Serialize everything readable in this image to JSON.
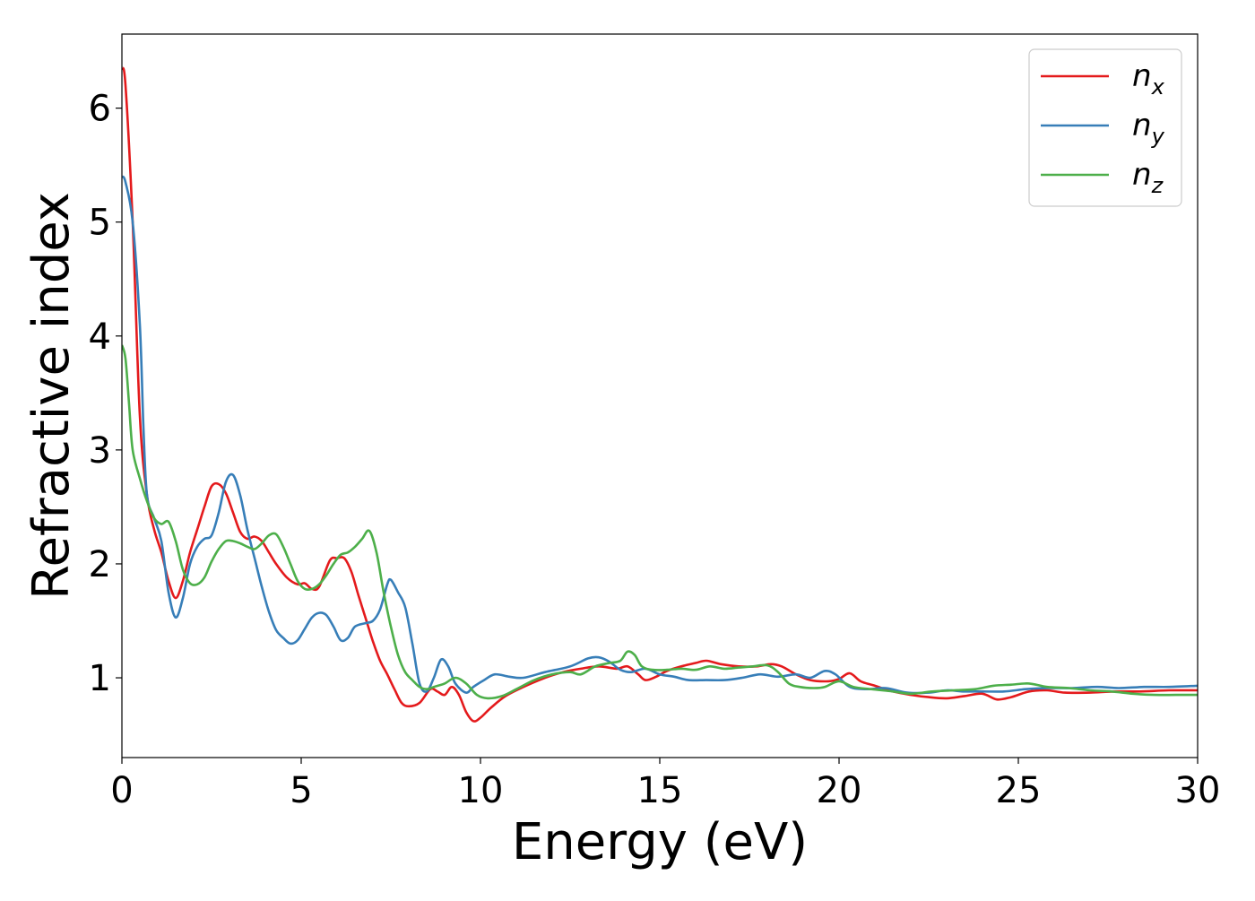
{
  "chart_data": {
    "type": "line",
    "title": "",
    "xlabel": "Energy (eV)",
    "ylabel": "Refractive index",
    "xlim": [
      0,
      30
    ],
    "ylim": [
      0.3,
      6.65
    ],
    "xticks": [
      0,
      5,
      10,
      15,
      20,
      25,
      30
    ],
    "xtick_labels": [
      "0",
      "5",
      "10",
      "15",
      "20",
      "25",
      "30"
    ],
    "yticks": [
      1,
      2,
      3,
      4,
      5,
      6
    ],
    "ytick_labels": [
      "1",
      "2",
      "3",
      "4",
      "5",
      "6"
    ],
    "grid": false,
    "legend_position": "top-right",
    "series": [
      {
        "name": "n",
        "subscript": "x",
        "color": "#e41a1c",
        "points": [
          [
            0,
            6.35
          ],
          [
            0.1,
            6.2
          ],
          [
            0.3,
            5.0
          ],
          [
            0.5,
            3.3
          ],
          [
            0.7,
            2.6
          ],
          [
            0.9,
            2.3
          ],
          [
            1.1,
            2.1
          ],
          [
            1.3,
            1.85
          ],
          [
            1.5,
            1.7
          ],
          [
            1.7,
            1.85
          ],
          [
            1.9,
            2.1
          ],
          [
            2.1,
            2.3
          ],
          [
            2.3,
            2.5
          ],
          [
            2.5,
            2.68
          ],
          [
            2.7,
            2.7
          ],
          [
            2.9,
            2.62
          ],
          [
            3.1,
            2.45
          ],
          [
            3.3,
            2.28
          ],
          [
            3.5,
            2.22
          ],
          [
            3.7,
            2.24
          ],
          [
            3.9,
            2.2
          ],
          [
            4.1,
            2.1
          ],
          [
            4.3,
            2.0
          ],
          [
            4.6,
            1.88
          ],
          [
            4.9,
            1.82
          ],
          [
            5.1,
            1.83
          ],
          [
            5.3,
            1.78
          ],
          [
            5.5,
            1.8
          ],
          [
            5.8,
            2.03
          ],
          [
            6.0,
            2.05
          ],
          [
            6.2,
            2.05
          ],
          [
            6.4,
            1.93
          ],
          [
            6.6,
            1.72
          ],
          [
            6.8,
            1.52
          ],
          [
            7.0,
            1.32
          ],
          [
            7.2,
            1.15
          ],
          [
            7.4,
            1.03
          ],
          [
            7.6,
            0.9
          ],
          [
            7.8,
            0.78
          ],
          [
            8.0,
            0.75
          ],
          [
            8.3,
            0.78
          ],
          [
            8.6,
            0.9
          ],
          [
            8.8,
            0.88
          ],
          [
            9.0,
            0.85
          ],
          [
            9.2,
            0.92
          ],
          [
            9.4,
            0.85
          ],
          [
            9.6,
            0.7
          ],
          [
            9.8,
            0.62
          ],
          [
            10.0,
            0.65
          ],
          [
            10.3,
            0.74
          ],
          [
            10.7,
            0.84
          ],
          [
            11.2,
            0.92
          ],
          [
            11.8,
            1.0
          ],
          [
            12.3,
            1.05
          ],
          [
            12.8,
            1.08
          ],
          [
            13.3,
            1.1
          ],
          [
            13.8,
            1.08
          ],
          [
            14.1,
            1.1
          ],
          [
            14.4,
            1.03
          ],
          [
            14.6,
            0.98
          ],
          [
            14.9,
            1.01
          ],
          [
            15.2,
            1.06
          ],
          [
            15.6,
            1.1
          ],
          [
            16.0,
            1.13
          ],
          [
            16.3,
            1.15
          ],
          [
            16.7,
            1.12
          ],
          [
            17.2,
            1.1
          ],
          [
            17.7,
            1.1
          ],
          [
            18.1,
            1.12
          ],
          [
            18.4,
            1.1
          ],
          [
            18.8,
            1.03
          ],
          [
            19.2,
            0.98
          ],
          [
            19.7,
            0.97
          ],
          [
            20.0,
            0.99
          ],
          [
            20.3,
            1.04
          ],
          [
            20.6,
            0.97
          ],
          [
            21.0,
            0.93
          ],
          [
            21.5,
            0.88
          ],
          [
            22.0,
            0.85
          ],
          [
            22.5,
            0.83
          ],
          [
            23.0,
            0.82
          ],
          [
            23.5,
            0.84
          ],
          [
            24.0,
            0.86
          ],
          [
            24.4,
            0.81
          ],
          [
            24.8,
            0.83
          ],
          [
            25.3,
            0.88
          ],
          [
            25.8,
            0.89
          ],
          [
            26.3,
            0.87
          ],
          [
            27.0,
            0.87
          ],
          [
            27.7,
            0.88
          ],
          [
            28.4,
            0.88
          ],
          [
            29.2,
            0.89
          ],
          [
            30,
            0.89
          ]
        ]
      },
      {
        "name": "n",
        "subscript": "y",
        "color": "#377eb8",
        "points": [
          [
            0,
            5.4
          ],
          [
            0.1,
            5.35
          ],
          [
            0.3,
            5.0
          ],
          [
            0.5,
            4.1
          ],
          [
            0.6,
            3.2
          ],
          [
            0.7,
            2.6
          ],
          [
            0.9,
            2.4
          ],
          [
            1.1,
            2.2
          ],
          [
            1.3,
            1.75
          ],
          [
            1.5,
            1.53
          ],
          [
            1.7,
            1.7
          ],
          [
            1.9,
            2.0
          ],
          [
            2.1,
            2.15
          ],
          [
            2.3,
            2.22
          ],
          [
            2.5,
            2.25
          ],
          [
            2.7,
            2.45
          ],
          [
            2.9,
            2.72
          ],
          [
            3.1,
            2.78
          ],
          [
            3.3,
            2.6
          ],
          [
            3.5,
            2.3
          ],
          [
            3.7,
            2.05
          ],
          [
            3.9,
            1.8
          ],
          [
            4.1,
            1.58
          ],
          [
            4.3,
            1.42
          ],
          [
            4.5,
            1.35
          ],
          [
            4.7,
            1.3
          ],
          [
            4.9,
            1.33
          ],
          [
            5.1,
            1.43
          ],
          [
            5.3,
            1.53
          ],
          [
            5.5,
            1.57
          ],
          [
            5.7,
            1.55
          ],
          [
            5.9,
            1.45
          ],
          [
            6.1,
            1.33
          ],
          [
            6.3,
            1.35
          ],
          [
            6.5,
            1.45
          ],
          [
            6.8,
            1.48
          ],
          [
            7.0,
            1.5
          ],
          [
            7.2,
            1.6
          ],
          [
            7.4,
            1.82
          ],
          [
            7.5,
            1.86
          ],
          [
            7.7,
            1.75
          ],
          [
            7.9,
            1.62
          ],
          [
            8.1,
            1.3
          ],
          [
            8.3,
            0.95
          ],
          [
            8.5,
            0.88
          ],
          [
            8.7,
            1.0
          ],
          [
            8.9,
            1.16
          ],
          [
            9.1,
            1.1
          ],
          [
            9.3,
            0.95
          ],
          [
            9.6,
            0.87
          ],
          [
            9.8,
            0.92
          ],
          [
            10.1,
            0.98
          ],
          [
            10.4,
            1.03
          ],
          [
            10.8,
            1.01
          ],
          [
            11.2,
            1.0
          ],
          [
            11.8,
            1.05
          ],
          [
            12.5,
            1.1
          ],
          [
            13.0,
            1.17
          ],
          [
            13.3,
            1.18
          ],
          [
            13.6,
            1.14
          ],
          [
            13.9,
            1.07
          ],
          [
            14.2,
            1.05
          ],
          [
            14.6,
            1.08
          ],
          [
            15.0,
            1.03
          ],
          [
            15.4,
            1.01
          ],
          [
            15.8,
            0.98
          ],
          [
            16.3,
            0.98
          ],
          [
            16.8,
            0.98
          ],
          [
            17.3,
            1.0
          ],
          [
            17.8,
            1.03
          ],
          [
            18.3,
            1.01
          ],
          [
            18.8,
            1.03
          ],
          [
            19.2,
            1.0
          ],
          [
            19.6,
            1.06
          ],
          [
            19.9,
            1.03
          ],
          [
            20.3,
            0.92
          ],
          [
            20.8,
            0.9
          ],
          [
            21.3,
            0.91
          ],
          [
            21.9,
            0.87
          ],
          [
            22.5,
            0.87
          ],
          [
            23.0,
            0.89
          ],
          [
            23.5,
            0.88
          ],
          [
            24.0,
            0.88
          ],
          [
            24.6,
            0.88
          ],
          [
            25.2,
            0.9
          ],
          [
            25.8,
            0.91
          ],
          [
            26.5,
            0.91
          ],
          [
            27.2,
            0.92
          ],
          [
            27.8,
            0.91
          ],
          [
            28.5,
            0.92
          ],
          [
            29.2,
            0.92
          ],
          [
            30,
            0.93
          ]
        ]
      },
      {
        "name": "n",
        "subscript": "z",
        "color": "#4daf4a",
        "points": [
          [
            0,
            3.92
          ],
          [
            0.1,
            3.8
          ],
          [
            0.2,
            3.4
          ],
          [
            0.3,
            3.0
          ],
          [
            0.5,
            2.75
          ],
          [
            0.7,
            2.55
          ],
          [
            0.9,
            2.4
          ],
          [
            1.1,
            2.35
          ],
          [
            1.3,
            2.37
          ],
          [
            1.5,
            2.2
          ],
          [
            1.7,
            1.95
          ],
          [
            1.9,
            1.83
          ],
          [
            2.1,
            1.82
          ],
          [
            2.3,
            1.88
          ],
          [
            2.5,
            2.02
          ],
          [
            2.7,
            2.13
          ],
          [
            2.9,
            2.2
          ],
          [
            3.1,
            2.2
          ],
          [
            3.3,
            2.18
          ],
          [
            3.5,
            2.15
          ],
          [
            3.7,
            2.13
          ],
          [
            3.9,
            2.18
          ],
          [
            4.1,
            2.25
          ],
          [
            4.3,
            2.26
          ],
          [
            4.5,
            2.15
          ],
          [
            4.7,
            2.0
          ],
          [
            4.9,
            1.85
          ],
          [
            5.1,
            1.78
          ],
          [
            5.3,
            1.78
          ],
          [
            5.5,
            1.82
          ],
          [
            5.7,
            1.9
          ],
          [
            5.9,
            2.0
          ],
          [
            6.1,
            2.08
          ],
          [
            6.3,
            2.1
          ],
          [
            6.5,
            2.15
          ],
          [
            6.7,
            2.22
          ],
          [
            6.9,
            2.29
          ],
          [
            7.1,
            2.1
          ],
          [
            7.3,
            1.75
          ],
          [
            7.5,
            1.45
          ],
          [
            7.7,
            1.2
          ],
          [
            7.9,
            1.05
          ],
          [
            8.1,
            0.98
          ],
          [
            8.3,
            0.92
          ],
          [
            8.5,
            0.9
          ],
          [
            8.7,
            0.92
          ],
          [
            9.0,
            0.95
          ],
          [
            9.3,
            1.0
          ],
          [
            9.6,
            0.95
          ],
          [
            9.9,
            0.85
          ],
          [
            10.2,
            0.82
          ],
          [
            10.6,
            0.84
          ],
          [
            11.0,
            0.9
          ],
          [
            11.5,
            0.98
          ],
          [
            12.0,
            1.03
          ],
          [
            12.5,
            1.05
          ],
          [
            12.8,
            1.03
          ],
          [
            13.2,
            1.1
          ],
          [
            13.6,
            1.13
          ],
          [
            13.9,
            1.15
          ],
          [
            14.1,
            1.23
          ],
          [
            14.3,
            1.2
          ],
          [
            14.5,
            1.1
          ],
          [
            14.8,
            1.07
          ],
          [
            15.2,
            1.07
          ],
          [
            15.6,
            1.08
          ],
          [
            16.0,
            1.07
          ],
          [
            16.4,
            1.1
          ],
          [
            16.8,
            1.08
          ],
          [
            17.2,
            1.09
          ],
          [
            17.6,
            1.1
          ],
          [
            18.0,
            1.11
          ],
          [
            18.3,
            1.05
          ],
          [
            18.6,
            0.95
          ],
          [
            18.9,
            0.92
          ],
          [
            19.3,
            0.91
          ],
          [
            19.6,
            0.92
          ],
          [
            20.0,
            0.97
          ],
          [
            20.4,
            0.92
          ],
          [
            20.9,
            0.9
          ],
          [
            21.5,
            0.88
          ],
          [
            22.0,
            0.86
          ],
          [
            22.6,
            0.88
          ],
          [
            23.2,
            0.89
          ],
          [
            23.8,
            0.9
          ],
          [
            24.3,
            0.93
          ],
          [
            24.8,
            0.94
          ],
          [
            25.3,
            0.95
          ],
          [
            25.8,
            0.92
          ],
          [
            26.4,
            0.91
          ],
          [
            27.0,
            0.89
          ],
          [
            27.6,
            0.88
          ],
          [
            28.2,
            0.86
          ],
          [
            28.8,
            0.85
          ],
          [
            29.4,
            0.85
          ],
          [
            30,
            0.85
          ]
        ]
      }
    ]
  }
}
